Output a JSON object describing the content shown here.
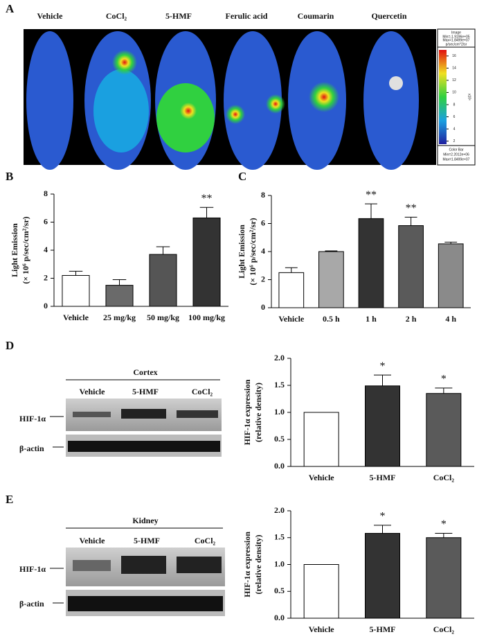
{
  "panel_letters": [
    "A",
    "B",
    "C",
    "D",
    "E"
  ],
  "panel_a": {
    "labels": [
      "Vehicle",
      "CoCl₂",
      "5-HMF",
      "Ferulic acid",
      "Coumarin",
      "Quercetin"
    ],
    "image_info": [
      "Image",
      "Min=-1.9196e+05",
      "Max=1.8499e+07",
      "p/sec/cm^2/sr"
    ],
    "color_bar_info": [
      "Color Bar",
      "Min=2.2012e+06",
      "Max=1.8499e+07"
    ],
    "colorbar_unit": "x10⁶",
    "colorbar_lim": [
      1.5,
      17
    ],
    "colorbar_ticks": [
      2,
      4,
      6,
      8,
      10,
      12,
      14,
      16
    ]
  },
  "blots": [
    {
      "tissue": "Cortex",
      "lanes": [
        "Vehicle",
        "5-HMF",
        "CoCl₂"
      ],
      "rows": [
        "HIF-1α",
        "β-actin"
      ]
    },
    {
      "tissue": "Kidney",
      "lanes": [
        "Vehicle",
        "5-HMF",
        "CoCl₂"
      ],
      "rows": [
        "HIF-1α",
        "β-actin"
      ]
    }
  ],
  "chart_data": [
    {
      "type": "bar",
      "ylabel": [
        "Light Emission",
        "(× 10⁶ p/sec/cm²/sr)"
      ],
      "categories": [
        "Vehicle",
        "25 mg/kg",
        "50 mg/kg",
        "100 mg/kg"
      ],
      "values": [
        2.2,
        1.5,
        3.7,
        6.3
      ],
      "errors": [
        0.3,
        0.4,
        0.55,
        0.75
      ],
      "annotations": [
        null,
        null,
        null,
        "**"
      ],
      "colors": [
        "#ffffff",
        "#6a6a6a",
        "#555555",
        "#333333"
      ],
      "ylim": [
        0,
        8
      ],
      "yticks": [
        0,
        2,
        4,
        6,
        8
      ]
    },
    {
      "type": "bar",
      "ylabel": [
        "Light Emission",
        "(× 10⁶ p/sec/cm²/sr)"
      ],
      "categories": [
        "Vehicle",
        "0.5 h",
        "1 h",
        "2 h",
        "4 h"
      ],
      "values": [
        2.5,
        4.0,
        6.35,
        5.85,
        4.55
      ],
      "errors": [
        0.35,
        0.05,
        1.05,
        0.6,
        0.12
      ],
      "annotations": [
        null,
        null,
        "**",
        "**",
        null
      ],
      "colors": [
        "#ffffff",
        "#a8a8a8",
        "#333333",
        "#5a5a5a",
        "#8a8a8a"
      ],
      "ylim": [
        0,
        8
      ],
      "yticks": [
        0,
        2,
        4,
        6,
        8
      ]
    },
    {
      "type": "bar",
      "ylabel": [
        "HIF-1α expression",
        "(relative density)"
      ],
      "categories": [
        "Vehicle",
        "5-HMF",
        "CoCl₂"
      ],
      "values": [
        1.0,
        1.49,
        1.35
      ],
      "errors": [
        null,
        0.2,
        0.1
      ],
      "annotations": [
        null,
        "*",
        "*"
      ],
      "colors": [
        "#ffffff",
        "#333333",
        "#5a5a5a"
      ],
      "ylim": [
        0,
        2
      ],
      "yticks": [
        {
          "value": 0,
          "label": "0.0"
        },
        {
          "value": 0.5,
          "label": "0.5"
        },
        {
          "value": 1,
          "label": "1.0"
        },
        {
          "value": 1.5,
          "label": "1.5"
        },
        {
          "value": 2,
          "label": "2.0"
        }
      ]
    },
    {
      "type": "bar",
      "ylabel": [
        "HIF-1α expression",
        "(relative density)"
      ],
      "categories": [
        "Vehicle",
        "5-HMF",
        "CoCl₂"
      ],
      "values": [
        1.0,
        1.58,
        1.5
      ],
      "errors": [
        null,
        0.15,
        0.08
      ],
      "annotations": [
        null,
        "*",
        "*"
      ],
      "colors": [
        "#ffffff",
        "#333333",
        "#5a5a5a"
      ],
      "ylim": [
        0,
        2
      ],
      "yticks": [
        {
          "value": 0,
          "label": "0.0"
        },
        {
          "value": 0.5,
          "label": "0.5"
        },
        {
          "value": 1,
          "label": "1.0"
        },
        {
          "value": 1.5,
          "label": "1.5"
        },
        {
          "value": 2,
          "label": "2.0"
        }
      ]
    }
  ]
}
